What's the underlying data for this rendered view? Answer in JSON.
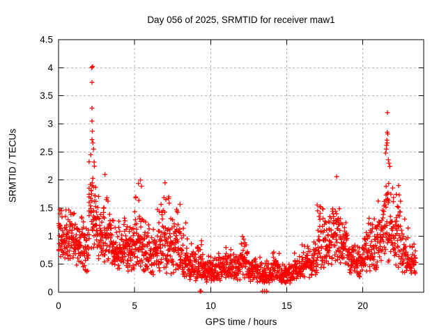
{
  "title": "Day 056 of 2025, SRMTID for receiver maw1",
  "x_axis": {
    "label": "GPS time / hours",
    "ticks": [
      0,
      5,
      10,
      15,
      20
    ],
    "tick_labels": [
      "0",
      "5",
      "10",
      "15",
      "20"
    ],
    "min": 0,
    "max": 24
  },
  "y_axis": {
    "label": "SRMTID / TECUs",
    "ticks": [
      0,
      0.5,
      1,
      1.5,
      2,
      2.5,
      3,
      3.5,
      4,
      4.5
    ],
    "tick_labels": [
      "0",
      "0.5",
      "1",
      "1.5",
      "2",
      "2.5",
      "3",
      "3.5",
      "4",
      "4.5"
    ],
    "min": 0,
    "max": 4.5
  },
  "colors": {
    "marker": "#ff0000",
    "grid": "#b3b3b3",
    "axis": "#000000",
    "text": "#000000",
    "background": "#ffffff"
  },
  "chart_data": {
    "type": "scatter",
    "marker": "plus",
    "title": "Day 056 of 2025, SRMTID for receiver maw1",
    "xlabel": "GPS time / hours",
    "ylabel": "SRMTID / TECUs",
    "xlim": [
      0,
      24
    ],
    "ylim": [
      0,
      4.5
    ],
    "grid": true,
    "legend": false,
    "series_name": "SRMTID",
    "density_bins": {
      "bin_width_hours": 0.5,
      "format": [
        "start_hour",
        "min_tecu",
        "max_tecu",
        "approx_point_count"
      ],
      "bins": [
        [
          0.0,
          0.55,
          1.65,
          46
        ],
        [
          0.5,
          0.55,
          1.55,
          46
        ],
        [
          1.0,
          0.45,
          1.5,
          44
        ],
        [
          1.5,
          0.35,
          1.55,
          44
        ],
        [
          2.0,
          0.75,
          2.55,
          52
        ],
        [
          2.5,
          0.5,
          1.8,
          44
        ],
        [
          3.0,
          0.45,
          1.75,
          44
        ],
        [
          3.5,
          0.4,
          1.35,
          44
        ],
        [
          4.0,
          0.45,
          1.5,
          44
        ],
        [
          4.5,
          0.35,
          1.25,
          44
        ],
        [
          5.0,
          0.4,
          1.95,
          44
        ],
        [
          5.5,
          0.35,
          1.5,
          42
        ],
        [
          6.0,
          0.3,
          1.35,
          42
        ],
        [
          6.5,
          0.35,
          1.9,
          44
        ],
        [
          7.0,
          0.3,
          1.9,
          44
        ],
        [
          7.5,
          0.3,
          1.7,
          42
        ],
        [
          8.0,
          0.25,
          1.3,
          42
        ],
        [
          8.5,
          0.2,
          0.95,
          40
        ],
        [
          9.0,
          0.18,
          1.1,
          40
        ],
        [
          9.5,
          0.15,
          0.75,
          40
        ],
        [
          10.0,
          0.15,
          0.7,
          40
        ],
        [
          10.5,
          0.18,
          0.8,
          40
        ],
        [
          11.0,
          0.18,
          0.85,
          40
        ],
        [
          11.5,
          0.2,
          0.8,
          40
        ],
        [
          12.0,
          0.2,
          1.05,
          40
        ],
        [
          12.5,
          0.15,
          0.75,
          40
        ],
        [
          13.0,
          0.15,
          0.65,
          40
        ],
        [
          13.5,
          0.15,
          0.6,
          40
        ],
        [
          14.0,
          0.18,
          0.78,
          40
        ],
        [
          14.5,
          0.15,
          0.6,
          40
        ],
        [
          15.0,
          0.15,
          0.6,
          40
        ],
        [
          15.5,
          0.18,
          0.72,
          40
        ],
        [
          16.0,
          0.2,
          1.05,
          40
        ],
        [
          16.5,
          0.25,
          1.0,
          40
        ],
        [
          17.0,
          0.35,
          1.6,
          42
        ],
        [
          17.5,
          0.4,
          1.5,
          42
        ],
        [
          18.0,
          0.5,
          1.9,
          44
        ],
        [
          18.5,
          0.5,
          1.5,
          44
        ],
        [
          19.0,
          0.3,
          1.05,
          40
        ],
        [
          19.5,
          0.25,
          0.95,
          40
        ],
        [
          20.0,
          0.3,
          1.4,
          40
        ],
        [
          20.5,
          0.35,
          1.45,
          42
        ],
        [
          21.0,
          0.4,
          1.85,
          42
        ],
        [
          21.5,
          0.5,
          2.4,
          46
        ],
        [
          22.0,
          0.4,
          1.9,
          42
        ],
        [
          22.5,
          0.3,
          1.35,
          40
        ],
        [
          23.0,
          0.3,
          0.95,
          36
        ]
      ]
    },
    "outlier_points": [
      [
        2.18,
        4.0
      ],
      [
        2.24,
        4.02
      ],
      [
        2.2,
        3.74
      ],
      [
        2.2,
        3.28
      ],
      [
        2.2,
        3.05
      ],
      [
        2.22,
        2.87
      ],
      [
        2.2,
        2.72
      ],
      [
        2.26,
        2.66
      ],
      [
        2.3,
        2.55
      ],
      [
        2.12,
        2.45
      ],
      [
        2.34,
        2.32
      ],
      [
        3.05,
        2.1
      ],
      [
        5.38,
        2.0
      ],
      [
        7.0,
        1.95
      ],
      [
        18.28,
        2.06
      ],
      [
        21.62,
        3.2
      ],
      [
        21.6,
        2.85
      ],
      [
        21.64,
        2.82
      ],
      [
        21.58,
        2.71
      ],
      [
        21.6,
        2.66
      ],
      [
        21.56,
        2.62
      ],
      [
        21.54,
        2.55
      ],
      [
        21.5,
        2.48
      ],
      [
        21.68,
        2.36
      ],
      [
        21.72,
        2.3
      ],
      [
        21.78,
        2.24
      ],
      [
        22.35,
        1.9
      ]
    ],
    "zero_line_points": [
      [
        9.3,
        0.02
      ],
      [
        9.36,
        0.02
      ],
      [
        13.4,
        0.02
      ],
      [
        13.55,
        0.02
      ],
      [
        13.68,
        0.02
      ]
    ]
  }
}
